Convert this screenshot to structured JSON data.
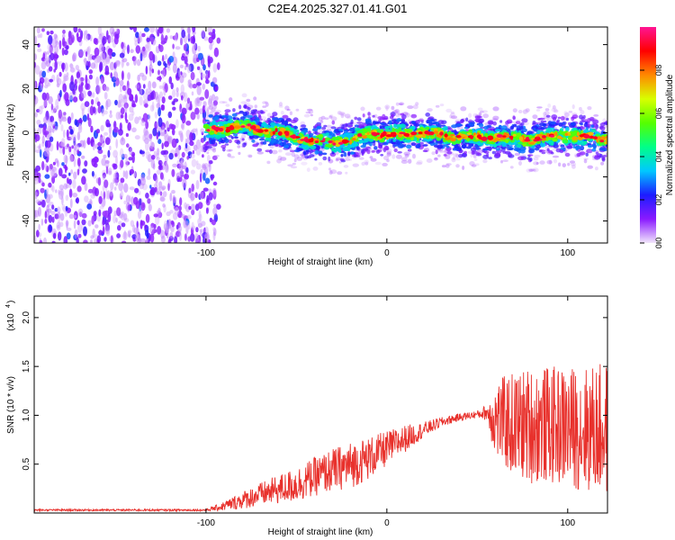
{
  "figure_title": "C2E4.2025.327.01.41.G01",
  "colors": {
    "snr_line": "#e8312c",
    "axis": "#000000",
    "background": "#ffffff"
  },
  "chart_data": [
    {
      "type": "heatmap",
      "name": "spectrogram",
      "xlabel": "Height of straight line (km)",
      "ylabel": "Frequency (Hz)",
      "xlim": [
        -195,
        122
      ],
      "ylim": [
        -50,
        48
      ],
      "xticks": [
        -100,
        0,
        100
      ],
      "xtick_labels": [
        "-100",
        "0",
        "100"
      ],
      "yticks": [
        -40,
        -20,
        0,
        20,
        40
      ],
      "ytick_labels": [
        "-40",
        "-20",
        "0",
        "20",
        "40"
      ],
      "description_regions": {
        "noise_region_x": [
          -195,
          -93
        ],
        "signal_region_x": [
          -100,
          122
        ],
        "signal_center_freq_hz": 0
      },
      "ridge_center": [
        {
          "x": -100,
          "f": 1
        },
        {
          "x": -80,
          "f": 3
        },
        {
          "x": -60,
          "f": 0
        },
        {
          "x": -40,
          "f": -4
        },
        {
          "x": -20,
          "f": -4
        },
        {
          "x": -10,
          "f": 0
        },
        {
          "x": 0,
          "f": -1
        },
        {
          "x": 20,
          "f": 0
        },
        {
          "x": 40,
          "f": -2
        },
        {
          "x": 60,
          "f": -2
        },
        {
          "x": 80,
          "f": -3
        },
        {
          "x": 100,
          "f": -1
        },
        {
          "x": 122,
          "f": -3
        }
      ],
      "colorbar": {
        "label": "Normalized spectral amplitude",
        "range": [
          0,
          1
        ],
        "ticks": [
          0.0,
          0.2,
          0.4,
          0.6,
          0.8
        ],
        "tick_labels": [
          "0.0",
          "0.2",
          "0.4",
          "0.6",
          "0.8"
        ],
        "colormap": [
          "#f2e6fb",
          "#8a1aff",
          "#1c1cff",
          "#00c8ff",
          "#00ff88",
          "#55ff00",
          "#d8ff00",
          "#ff8800",
          "#ff0000",
          "#ff1493"
        ]
      }
    },
    {
      "type": "line",
      "name": "snr",
      "xlabel": "Height of straight line (km)",
      "ylabel": "SNR (10 * v/v)",
      "y_scale_label": "(x10",
      "y_scale_exponent": "4",
      "xlim": [
        -195,
        122
      ],
      "ylim": [
        0.0,
        2.22
      ],
      "xticks": [
        -100,
        0,
        100
      ],
      "xtick_labels": [
        "-100",
        "0",
        "100"
      ],
      "yticks": [
        0.5,
        1.0,
        1.5,
        2.0
      ],
      "ytick_labels": [
        "0.5",
        "1.0",
        "1.5",
        "2.0"
      ],
      "series": [
        {
          "name": "SNR",
          "color": "#e8312c",
          "envelope": {
            "x": [
              -195,
              -100,
              -92,
              -80,
              -70,
              -60,
              -50,
              -40,
              -30,
              -20,
              -10,
              0,
              10,
              20,
              30,
              40,
              50,
              55,
              60,
              70,
              80,
              90,
              100,
              110,
              122
            ],
            "mean": [
              0.03,
              0.03,
              0.06,
              0.13,
              0.19,
              0.24,
              0.29,
              0.37,
              0.44,
              0.49,
              0.56,
              0.66,
              0.76,
              0.85,
              0.93,
              0.98,
              1.01,
              1.03,
              0.96,
              0.9,
              0.9,
              0.9,
              0.88,
              0.86,
              0.85
            ],
            "amp": [
              0.01,
              0.01,
              0.04,
              0.09,
              0.12,
              0.15,
              0.18,
              0.2,
              0.22,
              0.24,
              0.22,
              0.18,
              0.14,
              0.08,
              0.05,
              0.04,
              0.04,
              0.08,
              0.4,
              0.55,
              0.6,
              0.6,
              0.62,
              0.65,
              0.7
            ]
          }
        }
      ]
    }
  ]
}
